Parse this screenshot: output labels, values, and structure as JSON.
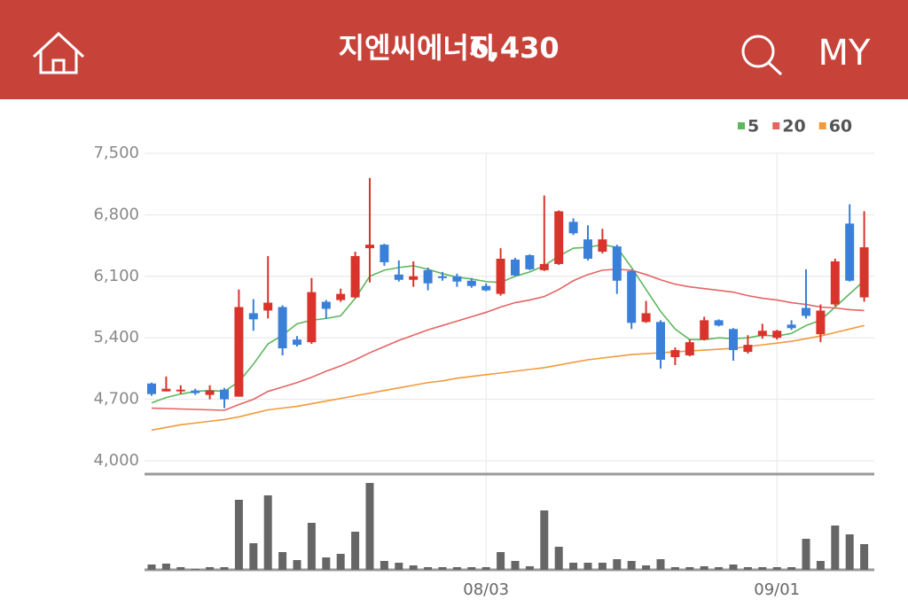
{
  "header": {
    "title": "지엔씨에너지",
    "price": "6,430",
    "menu": "MY"
  },
  "chart_data": {
    "type": "candlestick",
    "categories": [
      null,
      null,
      null,
      null,
      null,
      null,
      null,
      null,
      null,
      null,
      null,
      null,
      null,
      null,
      null,
      null,
      null,
      null,
      null,
      null,
      null,
      null,
      null,
      "08/03",
      null,
      null,
      null,
      null,
      null,
      null,
      null,
      null,
      null,
      null,
      null,
      null,
      null,
      null,
      null,
      null,
      null,
      null,
      null,
      "09/01",
      null,
      null,
      null,
      null,
      null,
      null
    ],
    "up_color": "#d9342b",
    "down_color": "#3a7fd8",
    "open": [
      4880,
      4790,
      4790,
      4800,
      4750,
      4810,
      4730,
      5680,
      5710,
      5750,
      5380,
      5350,
      5810,
      5830,
      5860,
      6420,
      6460,
      6120,
      6060,
      6170,
      6100,
      6100,
      6050,
      5990,
      5900,
      6290,
      6340,
      6170,
      6240,
      6720,
      6520,
      6380,
      6440,
      6160,
      5580,
      5580,
      5180,
      5200,
      5380,
      5600,
      5500,
      5240,
      5420,
      5400,
      5550,
      5740,
      5440,
      5780,
      6700,
      5860
    ],
    "high": [
      4890,
      4960,
      4860,
      4820,
      4860,
      4830,
      5950,
      5840,
      6330,
      5770,
      5420,
      6080,
      5830,
      5960,
      6380,
      7220,
      6470,
      6280,
      6270,
      6200,
      6150,
      6130,
      6080,
      6020,
      6420,
      6310,
      6350,
      7020,
      6850,
      6760,
      6680,
      6640,
      6460,
      6170,
      5820,
      5600,
      5290,
      5380,
      5640,
      5610,
      5510,
      5430,
      5560,
      5490,
      5600,
      6180,
      5780,
      6300,
      6920,
      6840
    ],
    "low": [
      4740,
      4790,
      4760,
      4750,
      4700,
      4600,
      4730,
      5480,
      5620,
      5200,
      5300,
      5330,
      5620,
      5810,
      5850,
      6030,
      6220,
      6040,
      5980,
      5940,
      6050,
      5980,
      5970,
      5930,
      5880,
      6100,
      6170,
      6160,
      6230,
      6570,
      6280,
      6360,
      5900,
      5500,
      5570,
      5050,
      5090,
      5190,
      5370,
      5530,
      5140,
      5220,
      5390,
      5380,
      5490,
      5620,
      5350,
      5760,
      6040,
      5810
    ],
    "close": [
      4760,
      4820,
      4810,
      4770,
      4800,
      4700,
      5750,
      5610,
      5800,
      5280,
      5320,
      5920,
      5730,
      5900,
      6330,
      6460,
      6260,
      6060,
      6100,
      6020,
      6080,
      6040,
      5990,
      5940,
      6300,
      6110,
      6180,
      6240,
      6840,
      6590,
      6300,
      6520,
      6050,
      5570,
      5680,
      5150,
      5260,
      5350,
      5600,
      5540,
      5260,
      5320,
      5480,
      5480,
      5510,
      5650,
      5710,
      6270,
      6050,
      6430
    ],
    "series": [
      {
        "name": "5",
        "color": "#5cb85c",
        "values": [
          4660,
          4720,
          4760,
          4790,
          4800,
          4790,
          4900,
          5100,
          5330,
          5430,
          5560,
          5600,
          5620,
          5650,
          5850,
          6100,
          6170,
          6200,
          6220,
          6180,
          6130,
          6090,
          6070,
          6040,
          6030,
          6100,
          6150,
          6220,
          6330,
          6420,
          6430,
          6460,
          6430,
          6200,
          5950,
          5700,
          5500,
          5380,
          5380,
          5400,
          5390,
          5400,
          5430,
          5420,
          5450,
          5540,
          5600,
          5750,
          5900,
          6050
        ]
      },
      {
        "name": "20",
        "color": "#e46464",
        "values": [
          4600,
          4595,
          4590,
          4585,
          4580,
          4575,
          4640,
          4700,
          4790,
          4840,
          4890,
          4950,
          5020,
          5080,
          5150,
          5230,
          5300,
          5370,
          5430,
          5490,
          5540,
          5590,
          5640,
          5690,
          5750,
          5800,
          5830,
          5870,
          5950,
          6050,
          6120,
          6170,
          6180,
          6170,
          6120,
          6060,
          6010,
          5980,
          5960,
          5940,
          5920,
          5880,
          5850,
          5830,
          5800,
          5780,
          5750,
          5740,
          5720,
          5710
        ]
      },
      {
        "name": "60",
        "color": "#f29a3a",
        "values": [
          4350,
          4380,
          4410,
          4430,
          4450,
          4470,
          4500,
          4540,
          4580,
          4600,
          4620,
          4650,
          4680,
          4710,
          4740,
          4770,
          4800,
          4830,
          4860,
          4890,
          4910,
          4940,
          4960,
          4980,
          5000,
          5020,
          5040,
          5060,
          5090,
          5120,
          5150,
          5170,
          5190,
          5210,
          5220,
          5230,
          5240,
          5250,
          5260,
          5270,
          5280,
          5300,
          5320,
          5340,
          5360,
          5390,
          5420,
          5460,
          5500,
          5540
        ]
      }
    ],
    "volume": {
      "color": "#666666",
      "values": [
        6,
        7,
        3,
        1,
        3,
        3,
        79,
        30,
        84,
        20,
        11,
        53,
        14,
        18,
        43,
        98,
        10,
        8,
        5,
        3,
        3,
        3,
        3,
        3,
        20,
        10,
        4,
        67,
        26,
        8,
        8,
        8,
        12,
        10,
        5,
        12,
        3,
        3,
        4,
        3,
        6,
        3,
        3,
        3,
        3,
        35,
        10,
        50,
        40,
        29
      ]
    },
    "ylim": [
      4000,
      7500
    ],
    "yticks": [
      {
        "value": 4000,
        "label": "4,000"
      },
      {
        "value": 4700,
        "label": "4,700"
      },
      {
        "value": 5400,
        "label": "5,400"
      },
      {
        "value": 6100,
        "label": "6,100"
      },
      {
        "value": 6800,
        "label": "6,800"
      },
      {
        "value": 7500,
        "label": "7,500"
      }
    ],
    "grid": true
  }
}
